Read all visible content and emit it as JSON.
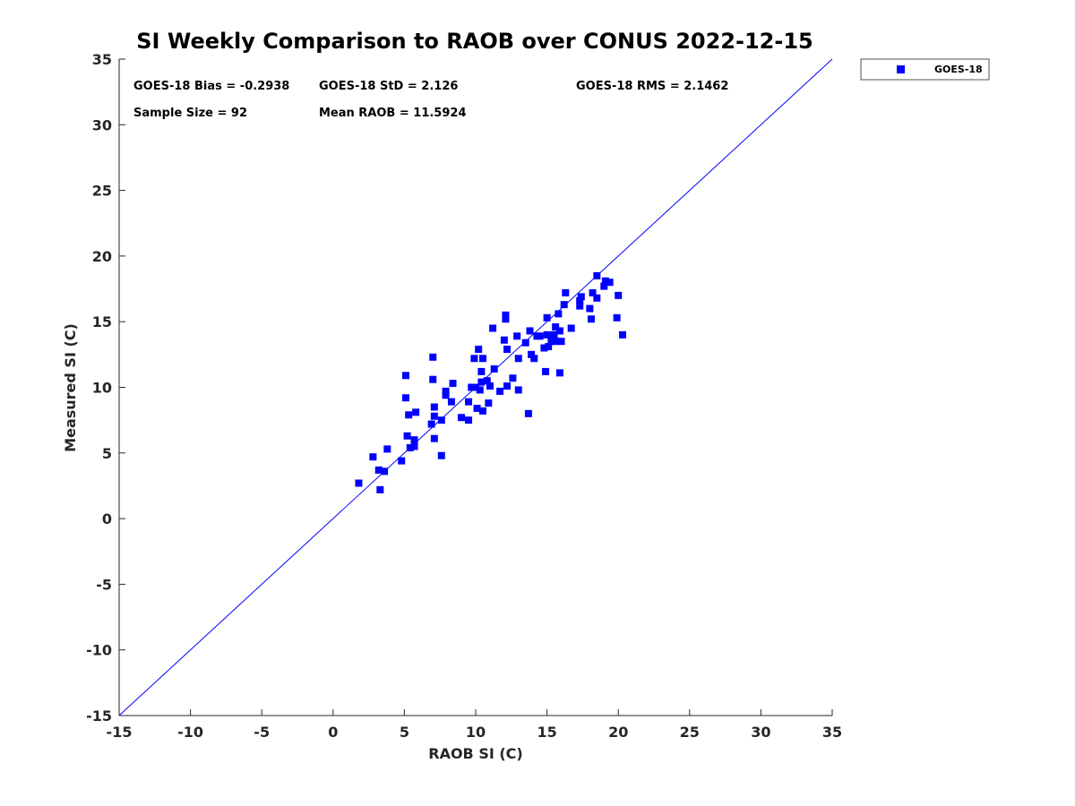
{
  "chart_data": {
    "type": "scatter",
    "title": "SI Weekly Comparison to RAOB over CONUS 2022-12-15",
    "xlabel": "RAOB SI (C)",
    "ylabel": "Measured SI (C)",
    "xlim": [
      -15,
      35
    ],
    "ylim": [
      -15,
      35
    ],
    "xticks": [
      -15,
      -10,
      -5,
      0,
      5,
      10,
      15,
      20,
      25,
      30,
      35
    ],
    "yticks": [
      -15,
      -10,
      -5,
      0,
      5,
      10,
      15,
      20,
      25,
      30,
      35
    ],
    "reference_line": {
      "from": [
        -15,
        -15
      ],
      "to": [
        35,
        35
      ],
      "color": "#0000ff"
    },
    "legend": {
      "entries": [
        "GOES-18"
      ],
      "placement": "outside-top-right"
    },
    "stats": {
      "bias": "GOES-18 Bias = -0.2938",
      "std": "GOES-18 StD = 2.126",
      "rms": "GOES-18 RMS = 2.1462",
      "sample_size": "Sample Size = 92",
      "mean": "Mean RAOB = 11.5924"
    },
    "series": [
      {
        "name": "GOES-18",
        "color": "#0000ff",
        "marker": "square",
        "points": [
          [
            1.8,
            2.7
          ],
          [
            2.8,
            4.7
          ],
          [
            3.2,
            3.7
          ],
          [
            3.3,
            2.2
          ],
          [
            3.6,
            3.6
          ],
          [
            3.8,
            5.3
          ],
          [
            4.8,
            4.4
          ],
          [
            5.1,
            10.9
          ],
          [
            5.1,
            9.2
          ],
          [
            5.2,
            6.3
          ],
          [
            5.3,
            7.9
          ],
          [
            5.4,
            5.4
          ],
          [
            5.7,
            6.0
          ],
          [
            5.7,
            5.5
          ],
          [
            5.8,
            8.1
          ],
          [
            6.9,
            7.2
          ],
          [
            7.0,
            12.3
          ],
          [
            7.0,
            10.6
          ],
          [
            7.1,
            8.5
          ],
          [
            7.1,
            7.8
          ],
          [
            7.1,
            6.1
          ],
          [
            7.6,
            7.5
          ],
          [
            7.6,
            4.8
          ],
          [
            7.9,
            9.7
          ],
          [
            7.9,
            9.4
          ],
          [
            8.3,
            8.9
          ],
          [
            8.4,
            10.3
          ],
          [
            9.0,
            7.7
          ],
          [
            9.5,
            8.9
          ],
          [
            9.5,
            7.5
          ],
          [
            9.7,
            10.0
          ],
          [
            9.9,
            12.2
          ],
          [
            10.0,
            10.0
          ],
          [
            10.1,
            8.4
          ],
          [
            10.2,
            12.9
          ],
          [
            10.3,
            9.8
          ],
          [
            10.4,
            11.2
          ],
          [
            10.4,
            10.4
          ],
          [
            10.5,
            8.2
          ],
          [
            10.5,
            12.2
          ],
          [
            10.8,
            10.5
          ],
          [
            10.9,
            8.8
          ],
          [
            11.0,
            10.1
          ],
          [
            11.2,
            14.5
          ],
          [
            11.3,
            11.4
          ],
          [
            11.7,
            9.7
          ],
          [
            12.0,
            13.6
          ],
          [
            12.1,
            15.5
          ],
          [
            12.1,
            15.2
          ],
          [
            12.2,
            10.1
          ],
          [
            12.2,
            12.9
          ],
          [
            12.6,
            10.7
          ],
          [
            12.9,
            13.9
          ],
          [
            13.0,
            12.2
          ],
          [
            13.0,
            9.8
          ],
          [
            13.5,
            13.4
          ],
          [
            13.7,
            8.0
          ],
          [
            13.8,
            14.3
          ],
          [
            13.9,
            12.5
          ],
          [
            14.1,
            12.2
          ],
          [
            14.3,
            13.9
          ],
          [
            14.5,
            13.9
          ],
          [
            14.8,
            13.0
          ],
          [
            14.9,
            11.2
          ],
          [
            15.0,
            15.3
          ],
          [
            15.0,
            14.0
          ],
          [
            15.1,
            13.1
          ],
          [
            15.3,
            13.5
          ],
          [
            15.5,
            14.0
          ],
          [
            15.6,
            14.6
          ],
          [
            15.6,
            13.5
          ],
          [
            15.8,
            15.6
          ],
          [
            15.9,
            14.3
          ],
          [
            15.9,
            11.1
          ],
          [
            16.0,
            13.5
          ],
          [
            16.2,
            16.3
          ],
          [
            16.3,
            17.2
          ],
          [
            16.7,
            14.5
          ],
          [
            17.3,
            16.6
          ],
          [
            17.3,
            16.2
          ],
          [
            17.4,
            16.9
          ],
          [
            18.0,
            16.0
          ],
          [
            18.1,
            15.2
          ],
          [
            18.2,
            17.2
          ],
          [
            18.5,
            18.5
          ],
          [
            18.5,
            16.8
          ],
          [
            19.0,
            17.7
          ],
          [
            19.1,
            18.1
          ],
          [
            19.4,
            18.0
          ],
          [
            19.9,
            15.3
          ],
          [
            20.0,
            17.0
          ],
          [
            20.3,
            14.0
          ]
        ]
      }
    ]
  }
}
